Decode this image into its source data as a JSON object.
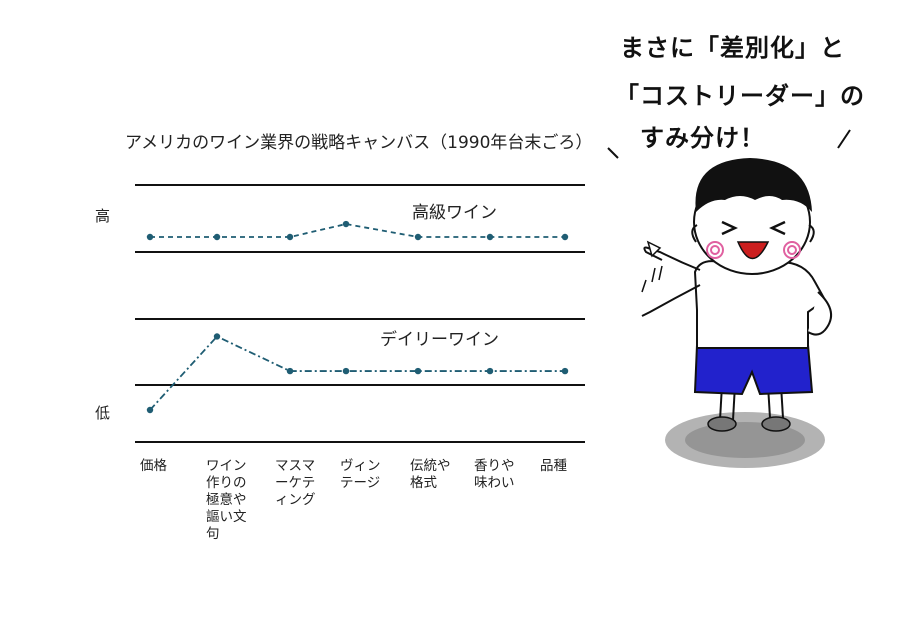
{
  "chart_data": {
    "type": "line",
    "title": "アメリカのワイン業界の戦略キャンバス（1990年台末ごろ）",
    "y_axis": {
      "high_label": "高",
      "low_label": "低"
    },
    "categories": [
      "価格",
      "ワイン作りの極意や謳い文句",
      "マスマーケティング",
      "ヴィンテージ",
      "伝統や格式",
      "香りや味わい",
      "品種"
    ],
    "series": [
      {
        "name": "高級ワイン",
        "values": [
          5,
          5,
          5,
          5.3,
          5,
          5,
          5
        ],
        "style": "dashed",
        "color": "#1f5d73"
      },
      {
        "name": "デイリーワイン",
        "values": [
          1,
          2.7,
          1.9,
          1.9,
          1.9,
          1.9,
          1.9
        ],
        "style": "dash-dot",
        "color": "#1f5d73"
      }
    ]
  },
  "speech_bubble": {
    "line1": "まさに「差別化」と",
    "line2": "「コストリーダー」の",
    "line3": "すみ分け！"
  },
  "colors": {
    "shorts": "#2222cc",
    "cheeks": "#e060a0",
    "shadow": "#9a9a9a"
  }
}
